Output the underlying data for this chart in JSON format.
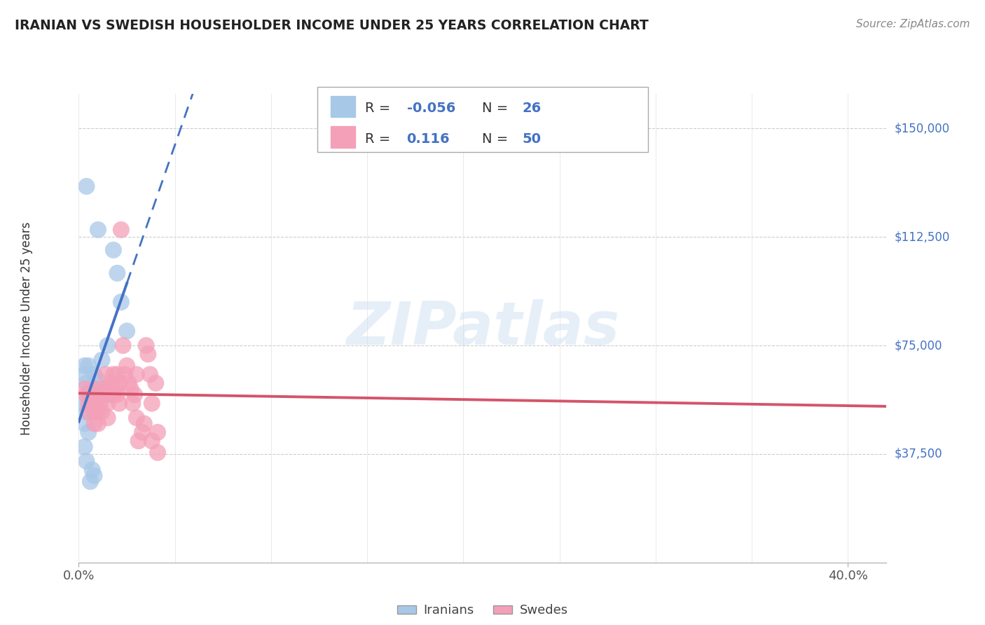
{
  "title": "IRANIAN VS SWEDISH HOUSEHOLDER INCOME UNDER 25 YEARS CORRELATION CHART",
  "source": "Source: ZipAtlas.com",
  "ylabel": "Householder Income Under 25 years",
  "yticks": [
    0,
    37500,
    75000,
    112500,
    150000
  ],
  "ytick_labels": [
    "",
    "$37,500",
    "$75,000",
    "$112,500",
    "$150,000"
  ],
  "xlim": [
    0.0,
    0.42
  ],
  "ylim": [
    0,
    162000
  ],
  "watermark": "ZIPatlas",
  "legend_iranian_R": "-0.056",
  "legend_iranian_N": "26",
  "legend_swedish_R": "0.116",
  "legend_swedish_N": "50",
  "iranian_color": "#a8c8e8",
  "swedish_color": "#f4a0b8",
  "iranian_line_color": "#4472c4",
  "swedish_line_color": "#d4546a",
  "iranian_scatter": [
    [
      0.004,
      130000
    ],
    [
      0.01,
      115000
    ],
    [
      0.018,
      108000
    ],
    [
      0.02,
      100000
    ],
    [
      0.022,
      90000
    ],
    [
      0.025,
      80000
    ],
    [
      0.015,
      75000
    ],
    [
      0.012,
      70000
    ],
    [
      0.005,
      68000
    ],
    [
      0.008,
      65000
    ],
    [
      0.01,
      63000
    ],
    [
      0.012,
      60000
    ],
    [
      0.003,
      68000
    ],
    [
      0.003,
      65000
    ],
    [
      0.004,
      62000
    ],
    [
      0.006,
      60000
    ],
    [
      0.008,
      58000
    ],
    [
      0.003,
      55000
    ],
    [
      0.004,
      52000
    ],
    [
      0.003,
      48000
    ],
    [
      0.005,
      45000
    ],
    [
      0.003,
      40000
    ],
    [
      0.004,
      35000
    ],
    [
      0.007,
      32000
    ],
    [
      0.008,
      30000
    ],
    [
      0.006,
      28000
    ]
  ],
  "swedish_scatter": [
    [
      0.003,
      60000
    ],
    [
      0.004,
      58000
    ],
    [
      0.005,
      55000
    ],
    [
      0.005,
      52000
    ],
    [
      0.006,
      58000
    ],
    [
      0.007,
      55000
    ],
    [
      0.008,
      60000
    ],
    [
      0.008,
      52000
    ],
    [
      0.008,
      48000
    ],
    [
      0.009,
      55000
    ],
    [
      0.01,
      52000
    ],
    [
      0.01,
      48000
    ],
    [
      0.011,
      55000
    ],
    [
      0.012,
      60000
    ],
    [
      0.012,
      52000
    ],
    [
      0.013,
      58000
    ],
    [
      0.014,
      65000
    ],
    [
      0.015,
      60000
    ],
    [
      0.015,
      55000
    ],
    [
      0.015,
      50000
    ],
    [
      0.016,
      58000
    ],
    [
      0.017,
      62000
    ],
    [
      0.018,
      65000
    ],
    [
      0.018,
      58000
    ],
    [
      0.019,
      60000
    ],
    [
      0.02,
      65000
    ],
    [
      0.02,
      58000
    ],
    [
      0.021,
      62000
    ],
    [
      0.021,
      55000
    ],
    [
      0.022,
      115000
    ],
    [
      0.023,
      75000
    ],
    [
      0.024,
      65000
    ],
    [
      0.025,
      68000
    ],
    [
      0.026,
      62000
    ],
    [
      0.027,
      60000
    ],
    [
      0.028,
      55000
    ],
    [
      0.029,
      58000
    ],
    [
      0.03,
      65000
    ],
    [
      0.03,
      50000
    ],
    [
      0.031,
      42000
    ],
    [
      0.033,
      45000
    ],
    [
      0.034,
      48000
    ],
    [
      0.035,
      75000
    ],
    [
      0.036,
      72000
    ],
    [
      0.037,
      65000
    ],
    [
      0.038,
      55000
    ],
    [
      0.038,
      42000
    ],
    [
      0.04,
      62000
    ],
    [
      0.041,
      45000
    ],
    [
      0.041,
      38000
    ]
  ]
}
